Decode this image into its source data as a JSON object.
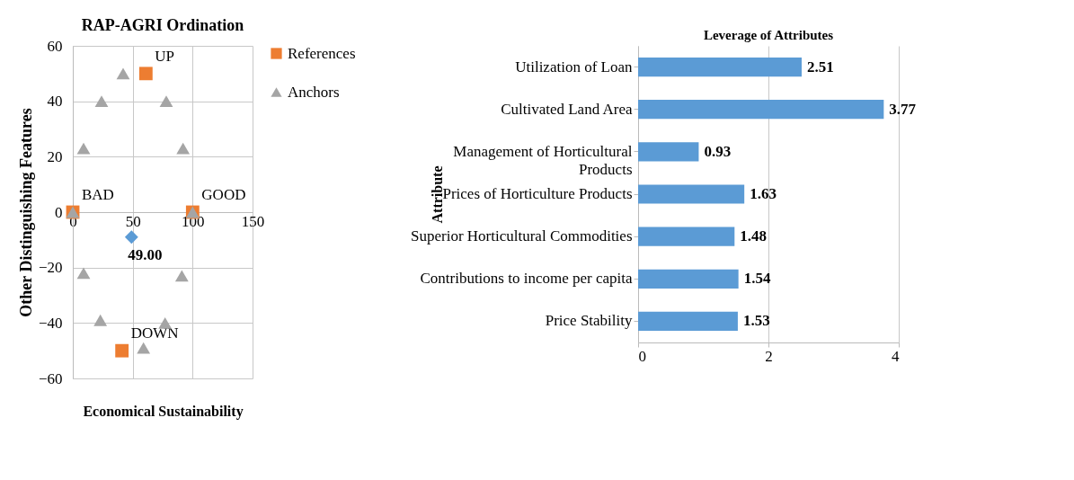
{
  "chart_data": [
    {
      "type": "scatter",
      "title": "RAP-AGRI Ordination",
      "xlabel": "Economical Sustainability",
      "ylabel": "Other Distinguishing Features",
      "xlim": [
        0,
        150
      ],
      "xticks": [
        0,
        50,
        100,
        150
      ],
      "ylim": [
        -60,
        60
      ],
      "yticks": [
        -60,
        -40,
        -20,
        0,
        20,
        40,
        60
      ],
      "grid": true,
      "legend": "right",
      "series": [
        {
          "name": "References",
          "color": "#ed7d31",
          "marker": "square",
          "x": [
            0,
            100,
            61,
            41
          ],
          "values": [
            0,
            0,
            50,
            -50
          ],
          "value_labels": [
            "BAD",
            "GOOD",
            "UP",
            "DOWN"
          ]
        },
        {
          "name": "Anchors",
          "color": "#a5a5a5",
          "marker": "triangle",
          "x": [
            0,
            100,
            42,
            24,
            78,
            9,
            92,
            9,
            91,
            23,
            77,
            59
          ],
          "values": [
            0,
            0,
            50,
            40,
            40,
            23,
            23,
            -22,
            -23,
            -39,
            -40,
            -49
          ]
        },
        {
          "color": "#5b9bd5",
          "marker": "diamond",
          "x": [
            49
          ],
          "values": [
            -9
          ]
        }
      ],
      "annotations": [
        {
          "text": "49.00",
          "x": 49,
          "y": -9
        }
      ]
    },
    {
      "type": "bar",
      "orientation": "horizontal",
      "title": "Leverage of Attributes",
      "ylabel": "Attribute",
      "categories": [
        "Utilization of Loan",
        "Cultivated Land Area",
        "Management of Horticultural Products",
        "Prices of Horticulture Products",
        "Superior Horticultural Commodities",
        "Contributions to income per capita",
        "Price Stability"
      ],
      "values": [
        2.51,
        3.77,
        0.93,
        1.63,
        1.48,
        1.54,
        1.53
      ],
      "color": "#5b9bd5",
      "xlim": [
        0,
        4
      ],
      "xticks": [
        0,
        2,
        4
      ],
      "grid": "x",
      "data_labels": true
    }
  ]
}
